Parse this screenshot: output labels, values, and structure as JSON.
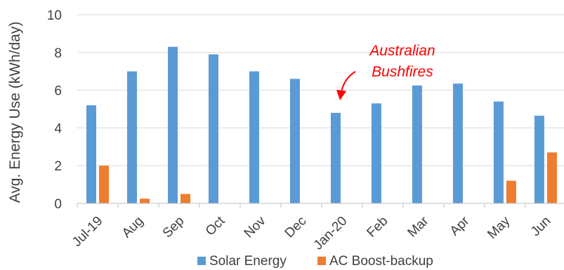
{
  "chart_data": {
    "type": "bar",
    "title": "",
    "xlabel": "",
    "ylabel": "Avg. Energy Use (kWh/day)",
    "ylim": [
      0,
      10
    ],
    "yticks": [
      0,
      2,
      4,
      6,
      8,
      10
    ],
    "grid": true,
    "legend_position": "bottom",
    "categories": [
      "Jul-19",
      "Aug",
      "Sep",
      "Oct",
      "Nov",
      "Dec",
      "Jan-20",
      "Feb",
      "Mar",
      "Apr",
      "May",
      "Jun"
    ],
    "series": [
      {
        "name": "Solar Energy",
        "color": "#5b9bd5",
        "values": [
          5.2,
          7.0,
          8.3,
          7.9,
          7.0,
          6.6,
          4.8,
          5.3,
          6.25,
          6.35,
          5.4,
          4.65
        ]
      },
      {
        "name": "AC Boost-backup",
        "color": "#ed7d31",
        "values": [
          2.0,
          0.25,
          0.5,
          0,
          0,
          0,
          0,
          0,
          0,
          0,
          1.2,
          2.7
        ]
      }
    ],
    "annotations": [
      {
        "text_lines": [
          "Australian",
          "Bushfires"
        ],
        "color": "#ff0000",
        "category": "Jan-20"
      }
    ]
  }
}
